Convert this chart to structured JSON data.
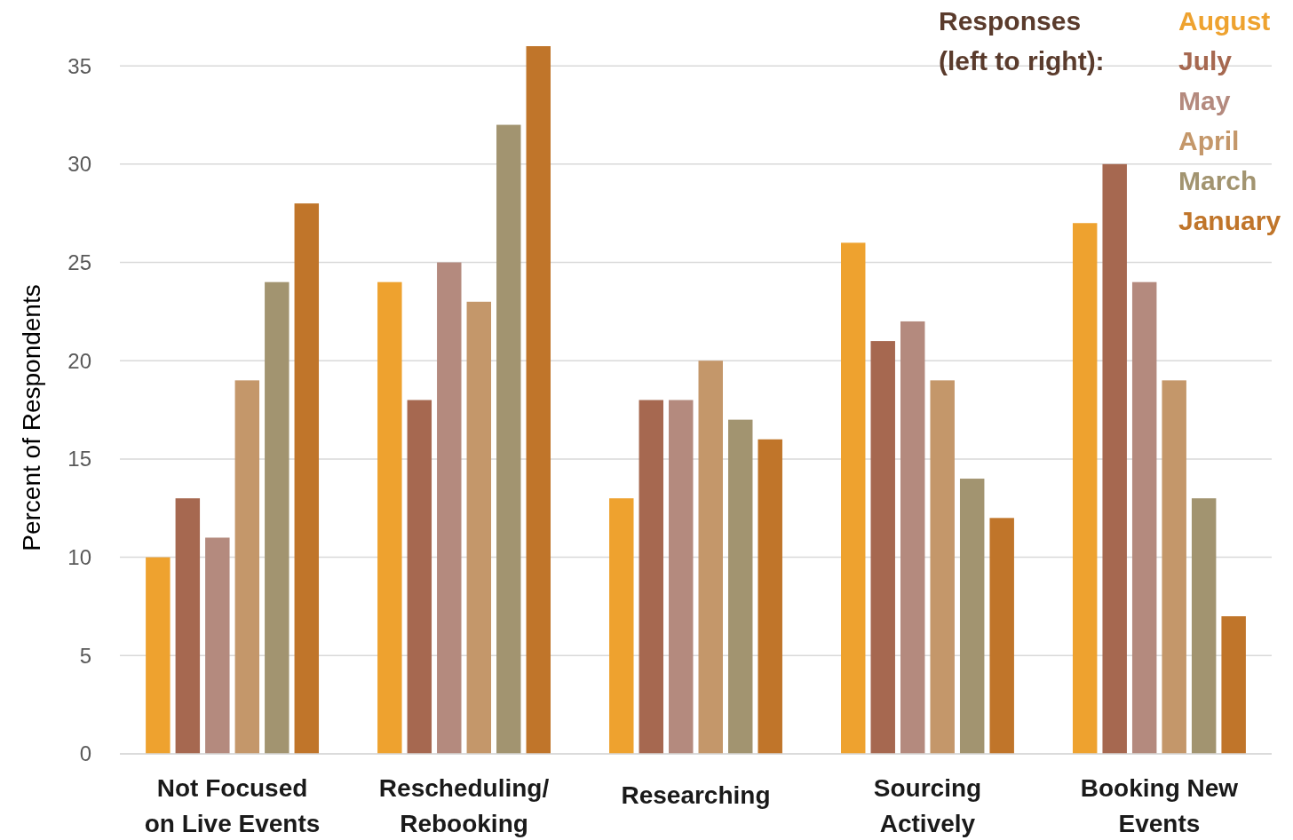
{
  "chart_data": {
    "type": "bar",
    "categories": [
      "Not Focused\non Live Events",
      "Rescheduling/\nRebooking",
      "Researching",
      "Sourcing\nActively",
      "Booking New\nEvents"
    ],
    "series": [
      {
        "name": "August",
        "color": "#eea22f",
        "values": [
          10,
          24,
          13,
          26,
          27
        ]
      },
      {
        "name": "July",
        "color": "#a66850",
        "values": [
          13,
          18,
          18,
          21,
          30
        ]
      },
      {
        "name": "May",
        "color": "#b48a7e",
        "values": [
          11,
          25,
          18,
          22,
          24
        ]
      },
      {
        "name": "April",
        "color": "#c4976a",
        "values": [
          19,
          23,
          20,
          19,
          19
        ]
      },
      {
        "name": "March",
        "color": "#a29470",
        "values": [
          24,
          32,
          17,
          14,
          13
        ]
      },
      {
        "name": "January",
        "color": "#c0752a",
        "values": [
          28,
          36,
          16,
          12,
          7
        ]
      }
    ],
    "ylabel": "Percent of Respondents",
    "legend_title": "Responses\n(left to right):",
    "legend": "top right",
    "ylim": [
      0,
      36
    ],
    "yticks": [
      0,
      5,
      10,
      15,
      20,
      25,
      30,
      35
    ],
    "grid": "y"
  }
}
